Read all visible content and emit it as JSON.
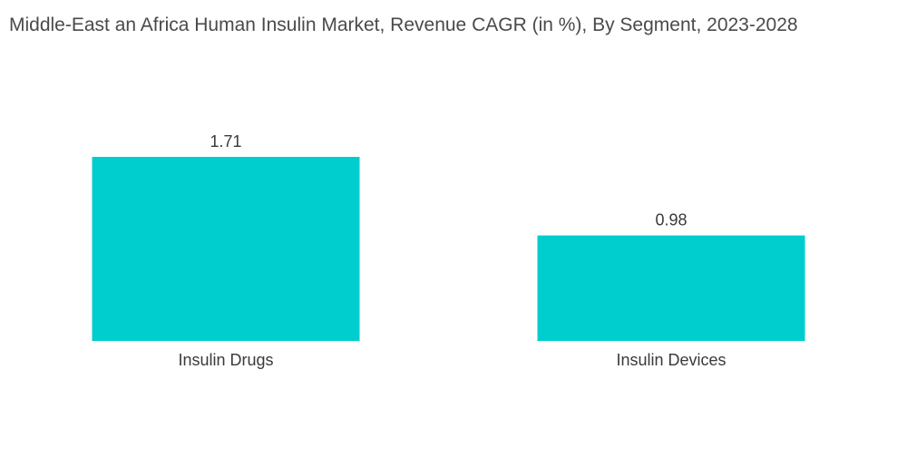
{
  "chart_data": {
    "type": "bar",
    "title": "Middle-East an Africa Human Insulin Market, Revenue CAGR (in %), By Segment, 2023-2028",
    "categories": [
      "Insulin Drugs",
      "Insulin Devices"
    ],
    "values": [
      1.71,
      0.98
    ],
    "value_labels": [
      "1.71",
      "0.98"
    ],
    "xlabel": "",
    "ylabel": "",
    "ylim": [
      0,
      1.71
    ],
    "grid": false,
    "legend": "none",
    "bar_color": "#00CDCD"
  }
}
